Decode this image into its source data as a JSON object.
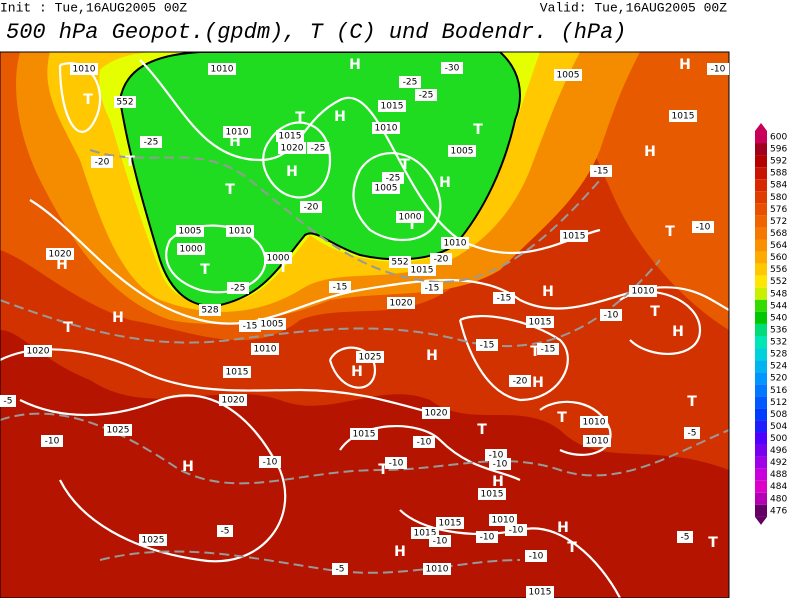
{
  "header": {
    "init": "Init : Tue,16AUG2005 00Z",
    "valid": "Valid: Tue,16AUG2005 00Z",
    "title": "500 hPa Geopot.(gpdm), T (C) und Bodendr. (hPa)"
  },
  "colorbar": {
    "labels": [
      600,
      596,
      592,
      588,
      584,
      580,
      576,
      572,
      568,
      564,
      560,
      556,
      552,
      548,
      544,
      540,
      536,
      532,
      528,
      524,
      520,
      516,
      512,
      508,
      504,
      500,
      496,
      492,
      488,
      484,
      480,
      476
    ],
    "colors": [
      "#c8005a",
      "#a0001e",
      "#b40000",
      "#c81400",
      "#d82800",
      "#e03c00",
      "#e85000",
      "#f06400",
      "#f57800",
      "#fa9100",
      "#ffaa00",
      "#ffc800",
      "#ffe600",
      "#c8f000",
      "#32dc00",
      "#00c800",
      "#00dc78",
      "#00e6b4",
      "#00d2dc",
      "#00b4f0",
      "#0096ff",
      "#0078ff",
      "#005aff",
      "#003cff",
      "#1e1eff",
      "#5000ff",
      "#7800f0",
      "#a000e6",
      "#c800dc",
      "#dc00c8",
      "#b400b4",
      "#640064"
    ]
  },
  "map_labels": {
    "centers": [
      "H",
      "H",
      "T",
      "T",
      "H",
      "T",
      "H",
      "H",
      "T",
      "T",
      "H",
      "T",
      "T",
      "T",
      "T",
      "H",
      "T",
      "H",
      "H",
      "T",
      "H",
      "H",
      "H",
      "T",
      "H",
      "T",
      "T",
      "H",
      "T",
      "H",
      "H",
      "T",
      "H",
      "T",
      "H",
      "T",
      "T"
    ],
    "isobars": [
      "1010",
      "1010",
      "1005",
      "1015",
      "1010",
      "1015",
      "1020",
      "1015",
      "1010",
      "1005",
      "1005",
      "1000",
      "1005",
      "1010",
      "1000",
      "1000",
      "1010",
      "1015",
      "1015",
      "1020",
      "1020",
      "1005",
      "1010",
      "1015",
      "1020",
      "1025",
      "1015",
      "1010",
      "1020",
      "1020",
      "1010",
      "1010",
      "1025",
      "1015",
      "1015",
      "1015",
      "1015",
      "1010",
      "1025",
      "1010",
      "1015",
      "552",
      "552",
      "528"
    ],
    "temperatures": [
      "-25",
      "-30",
      "-25",
      "-25",
      "-25",
      "-20",
      "-25",
      "-20",
      "-20",
      "-25",
      "-15",
      "-15",
      "-15",
      "-15",
      "-15",
      "-10",
      "-10",
      "-15",
      "-10",
      "-20",
      "-15",
      "-10",
      "-10",
      "-5",
      "-10",
      "-10",
      "-10",
      "-10",
      "-5",
      "-10",
      "-10",
      "-10",
      "-10",
      "-5",
      "-5",
      "-5"
    ]
  }
}
